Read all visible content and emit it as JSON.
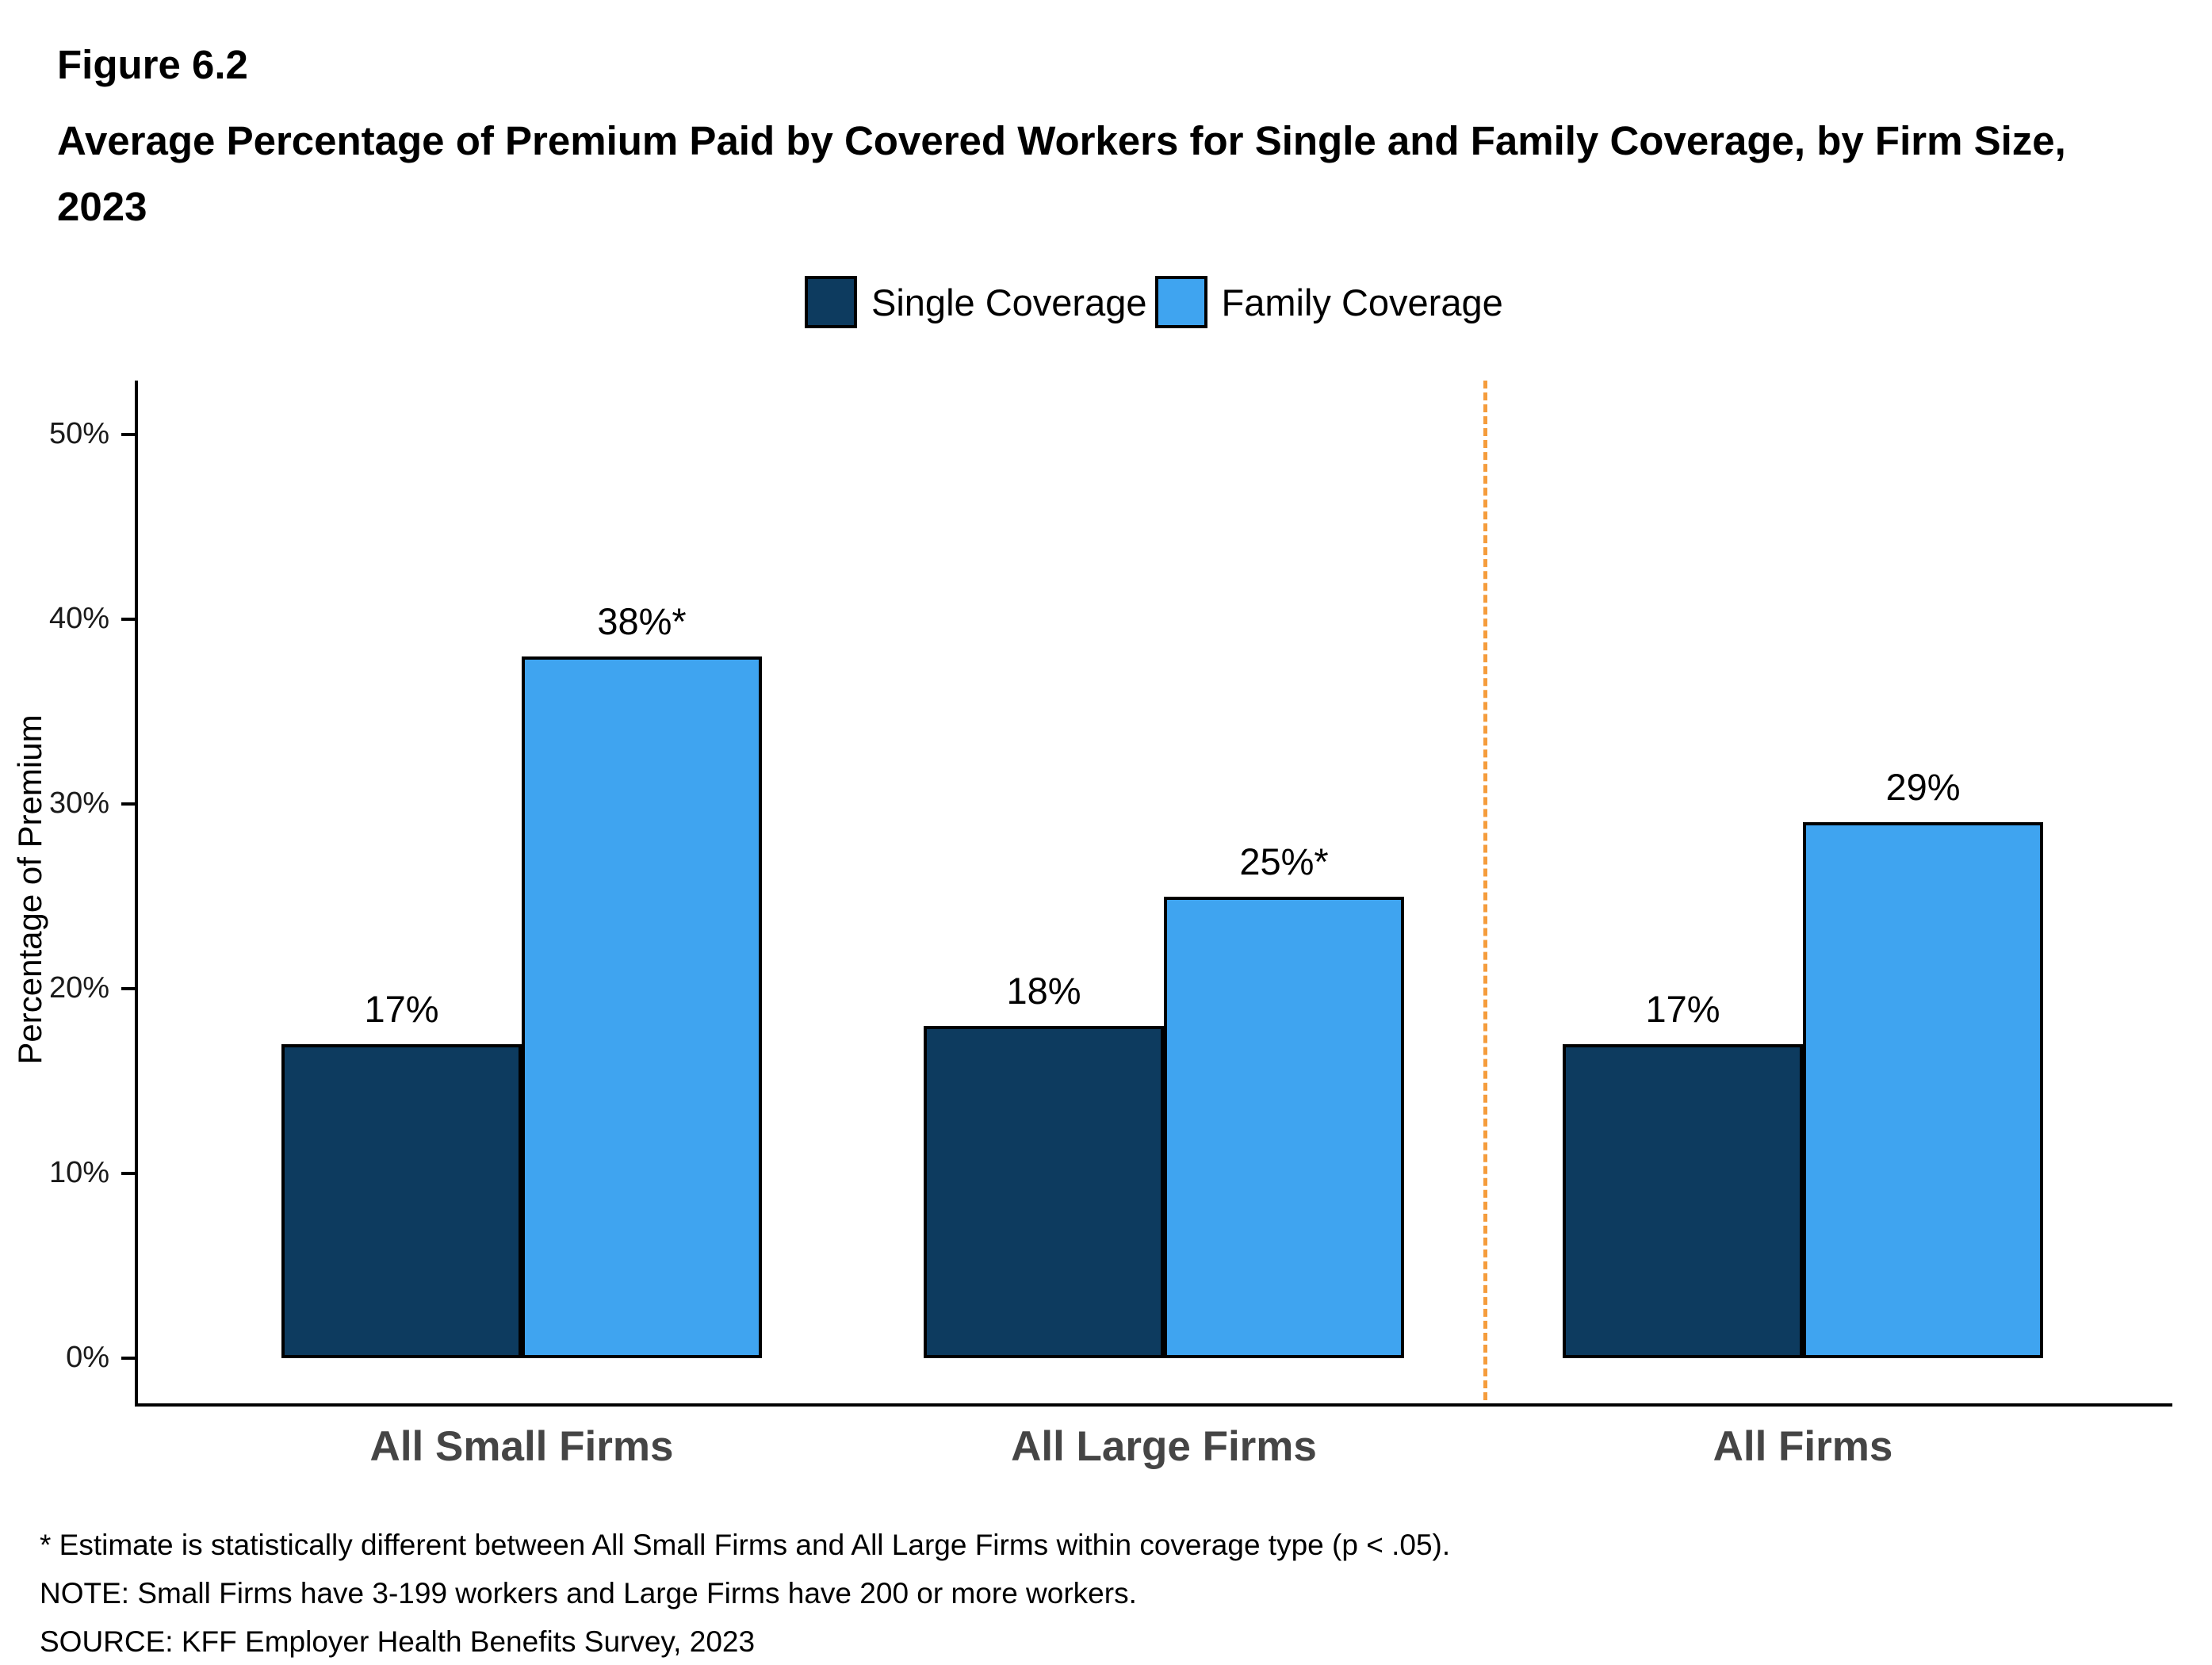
{
  "figure": {
    "label": "Figure 6.2",
    "title": "Average Percentage of Premium Paid by Covered Workers for Single and Family Coverage, by Firm Size, 2023"
  },
  "legend": [
    {
      "label": "Single Coverage",
      "color": "#0D3B5F"
    },
    {
      "label": "Family Coverage",
      "color": "#3FA4F0"
    }
  ],
  "chart_data": {
    "type": "bar",
    "title": "Average Percentage of Premium Paid by Covered Workers for Single and Family Coverage, by Firm Size, 2023",
    "xlabel": "",
    "ylabel": "Percentage of Premium",
    "ylim": [
      0,
      52
    ],
    "yticks": [
      0,
      10,
      20,
      30,
      40,
      50
    ],
    "ytick_labels": [
      "0%",
      "10%",
      "20%",
      "30%",
      "40%",
      "50%"
    ],
    "categories": [
      "All Small Firms",
      "All Large Firms",
      "All Firms"
    ],
    "series": [
      {
        "name": "Single Coverage",
        "color": "#0D3B5F",
        "values": [
          17,
          18,
          17
        ],
        "labels": [
          "17%",
          "18%",
          "17%"
        ]
      },
      {
        "name": "Family Coverage",
        "color": "#3FA4F0",
        "values": [
          38,
          25,
          29
        ],
        "labels": [
          "38%*",
          "25%*",
          "29%"
        ]
      }
    ],
    "grid": false,
    "legend_position": "top",
    "separator_after_category": 1,
    "separator_color": "#F59C3C"
  },
  "footnotes": [
    "* Estimate is statistically different between All Small Firms and All Large Firms within coverage type (p < .05).",
    "NOTE: Small Firms have 3-199 workers and Large Firms have 200 or more workers.",
    "SOURCE: KFF Employer Health Benefits Survey, 2023"
  ]
}
